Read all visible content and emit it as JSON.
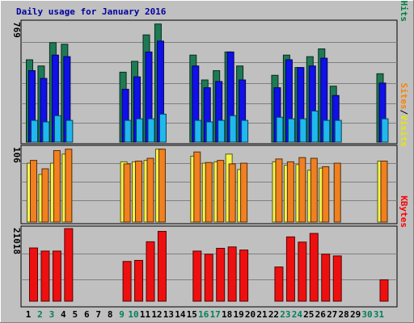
{
  "chart_data": {
    "type": "bar",
    "title": "Daily usage for January 2016",
    "days": [
      "1",
      "2",
      "3",
      "4",
      "5",
      "6",
      "7",
      "8",
      "9",
      "10",
      "11",
      "12",
      "13",
      "14",
      "15",
      "16",
      "17",
      "18",
      "19",
      "20",
      "21",
      "22",
      "23",
      "24",
      "25",
      "26",
      "27",
      "28",
      "29",
      "30",
      "31"
    ],
    "weekend_days": [
      "2",
      "3",
      "9",
      "10",
      "16",
      "17",
      "23",
      "24",
      "30",
      "31"
    ],
    "panels": [
      {
        "id": "hits_files_pages",
        "scale_max": 769,
        "scale_label": "769",
        "legend": [
          {
            "name": "Hits",
            "color": "#008040"
          },
          {
            "name": "Files",
            "color": "#0000FF"
          },
          {
            "name": "Pages",
            "color": "#00C0FF"
          }
        ],
        "series": [
          {
            "name": "Hits",
            "color": "#1E7A54",
            "values": [
              530,
              490,
              640,
              630,
              0,
              0,
              0,
              0,
              450,
              520,
              690,
              760,
              0,
              0,
              560,
              400,
              460,
              580,
              490,
              0,
              0,
              430,
              560,
              480,
              550,
              600,
              360,
              0,
              0,
              0,
              440
            ]
          },
          {
            "name": "Files",
            "color": "#1010E8",
            "values": [
              460,
              410,
              560,
              550,
              0,
              0,
              0,
              0,
              340,
              420,
              580,
              650,
              0,
              0,
              490,
              350,
              390,
              580,
              400,
              0,
              0,
              350,
              530,
              480,
              490,
              540,
              300,
              0,
              0,
              0,
              380
            ]
          },
          {
            "name": "Pages",
            "color": "#20B8EE",
            "values": [
              140,
              130,
              170,
              140,
              0,
              0,
              0,
              0,
              140,
              150,
              150,
              180,
              0,
              0,
              140,
              130,
              140,
              170,
              140,
              0,
              0,
              160,
              150,
              150,
              200,
              140,
              140,
              0,
              0,
              0,
              150
            ]
          }
        ]
      },
      {
        "id": "visits_sites",
        "scale_max": 106,
        "scale_label": "106",
        "legend": [
          {
            "name": "Visits",
            "color": "#E8E800"
          },
          {
            "name": "Sites",
            "color": "#FF8000"
          }
        ],
        "series": [
          {
            "name": "Visits",
            "color": "#F4F44C",
            "values": [
              84,
              68,
              84,
              97,
              0,
              0,
              0,
              0,
              86,
              86,
              88,
              104,
              0,
              0,
              94,
              84,
              86,
              97,
              75,
              0,
              0,
              86,
              81,
              82,
              74,
              77,
              0,
              0,
              0,
              0,
              87
            ]
          },
          {
            "name": "Sites",
            "color": "#F08020",
            "values": [
              88,
              76,
              102,
              104,
              0,
              0,
              0,
              0,
              83,
              87,
              91,
              104,
              0,
              0,
              100,
              85,
              88,
              83,
              84,
              0,
              0,
              90,
              86,
              92,
              91,
              79,
              84,
              0,
              0,
              0,
              87
            ]
          }
        ]
      },
      {
        "id": "kbytes",
        "scale_max": 21018,
        "scale_label": "21018",
        "legend": [
          {
            "name": "KBytes",
            "color": "#FF0000"
          }
        ],
        "series": [
          {
            "name": "KBytes",
            "color": "#EE1010",
            "values": [
              15400,
              14500,
              14500,
              21000,
              0,
              0,
              0,
              0,
              11500,
              11800,
              17200,
              20200,
              0,
              0,
              14500,
              13600,
              15300,
              15700,
              14800,
              0,
              0,
              9900,
              18600,
              17100,
              19600,
              13600,
              13100,
              0,
              0,
              0,
              6200
            ]
          }
        ]
      }
    ]
  }
}
